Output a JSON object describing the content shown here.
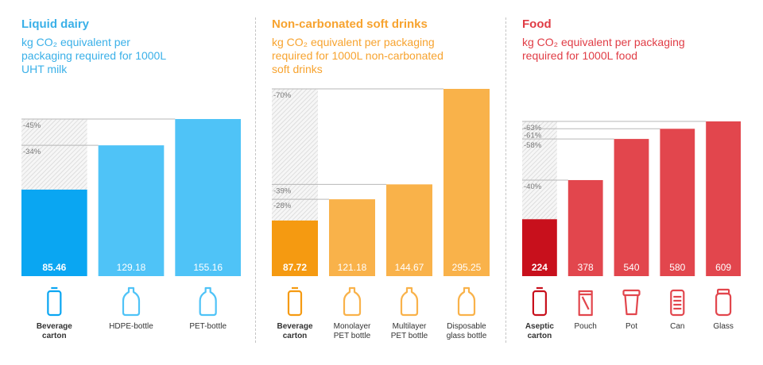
{
  "colors": {
    "dairy": "#3ab0e8",
    "soft": "#f7a32f",
    "food": "#e03c45"
  },
  "panels": [
    {
      "title": "Liquid dairy",
      "subtitle": [
        "kg CO₂ equivalent per",
        "packaging required for 1000L",
        "UHT milk"
      ]
    },
    {
      "title": "Non-carbonated soft drinks",
      "subtitle": [
        "kg CO₂ equivalent per packaging",
        "required for 1000L non-carbonated",
        "soft drinks"
      ]
    },
    {
      "title": "Food",
      "subtitle": [
        "kg CO₂ equivalent per packaging",
        "required for 1000L food"
      ]
    }
  ],
  "chart_data": [
    {
      "type": "bar",
      "title": "Liquid dairy",
      "categories": [
        "Beverage carton",
        "HDPE-bottle",
        "PET-bottle"
      ],
      "category_lines": [
        [
          "Beverage",
          "carton"
        ],
        [
          "HDPE-bottle"
        ],
        [
          "PET-bottle"
        ]
      ],
      "values": [
        85.46,
        129.18,
        155.16
      ],
      "value_labels": [
        "85.46",
        "129.18",
        "155.16"
      ],
      "reduction_labels": [
        "-45%",
        "-34%"
      ],
      "icons": [
        "carton-icon",
        "bottle-icon",
        "bottle-icon"
      ],
      "ylim": [
        0,
        155.16
      ],
      "color": "#4fc3f7",
      "highlight_color": "#0aa6f2"
    },
    {
      "type": "bar",
      "title": "Non-carbonated soft drinks",
      "categories": [
        "Beverage carton",
        "Monolayer PET bottle",
        "Multilayer PET bottle",
        "Disposable glass bottle"
      ],
      "category_lines": [
        [
          "Beverage",
          "carton"
        ],
        [
          "Monolayer",
          "PET bottle"
        ],
        [
          "Multilayer",
          "PET bottle"
        ],
        [
          "Disposable",
          "glass bottle"
        ]
      ],
      "values": [
        87.72,
        121.18,
        144.67,
        295.25
      ],
      "value_labels": [
        "87.72",
        "121.18",
        "144.67",
        "295.25"
      ],
      "reduction_labels": [
        "-70%",
        "-39%",
        "-28%"
      ],
      "icons": [
        "carton-icon",
        "bottle-icon",
        "bottle-icon",
        "bottle-icon"
      ],
      "ylim": [
        0,
        295.25
      ],
      "color": "#f9b24a",
      "highlight_color": "#f59a11"
    },
    {
      "type": "bar",
      "title": "Food",
      "categories": [
        "Aseptic carton",
        "Pouch",
        "Pot",
        "Can",
        "Glass"
      ],
      "category_lines": [
        [
          "Aseptic",
          "carton"
        ],
        [
          "Pouch"
        ],
        [
          "Pot"
        ],
        [
          "Can"
        ],
        [
          "Glass"
        ]
      ],
      "values": [
        224,
        378,
        540,
        580,
        609
      ],
      "value_labels": [
        "224",
        "378",
        "540",
        "580",
        "609"
      ],
      "reduction_labels": [
        "-63%",
        "-61%",
        "-58%",
        "-40%"
      ],
      "icons": [
        "carton-icon",
        "pouch-icon",
        "pot-icon",
        "can-icon",
        "jar-icon"
      ],
      "ylim": [
        0,
        609
      ],
      "color": "#e2464d",
      "highlight_color": "#c8101c"
    }
  ]
}
